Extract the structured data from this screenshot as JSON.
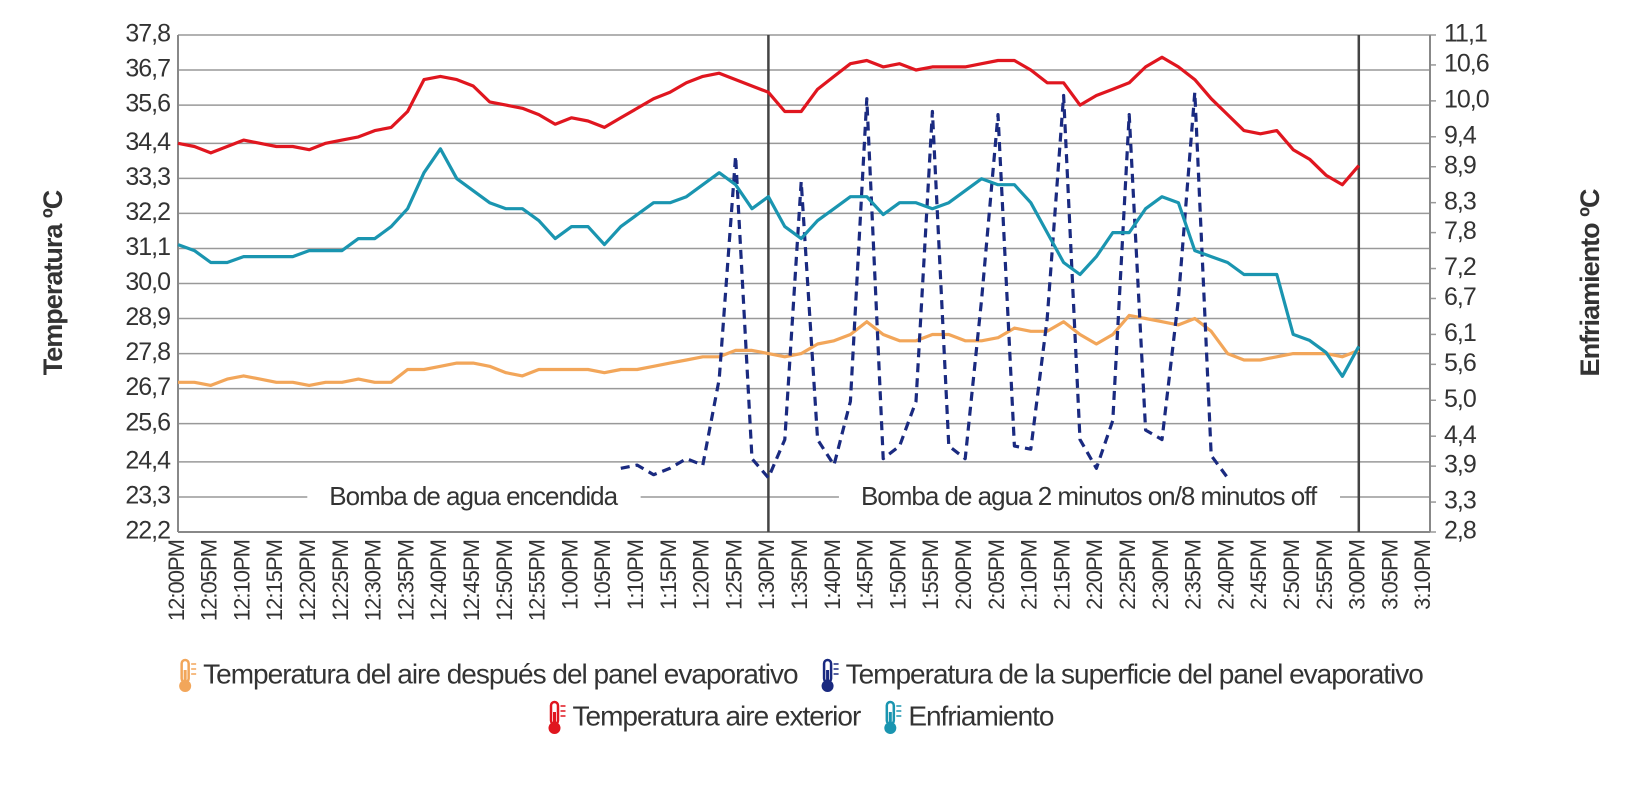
{
  "chart_data": {
    "type": "line",
    "y_label": "Temperatura ºC",
    "y2_label": "Enfriamiento ºC",
    "categories": [
      "12:00PM",
      null,
      "12:05PM",
      null,
      "12:10PM",
      null,
      "12:15PM",
      null,
      "12:20PM",
      null,
      "12:25PM",
      null,
      "12:30PM",
      null,
      "12:35PM",
      null,
      "12:40PM",
      null,
      "12:45PM",
      null,
      "12:50PM",
      null,
      "12:55PM",
      null,
      "1:00PM",
      null,
      "1:05PM",
      null,
      "1:10PM",
      null,
      "1:15PM",
      null,
      "1:20PM",
      null,
      "1:25PM",
      null,
      "1:30PM",
      null,
      "1:35PM",
      null,
      "1:40PM",
      null,
      "1:45PM",
      null,
      "1:50PM",
      null,
      "1:55PM",
      null,
      "2:00PM",
      null,
      "2:05PM",
      null,
      "2:10PM",
      null,
      "2:15PM",
      null,
      "2:20PM",
      null,
      "2:25PM",
      null,
      "2:30PM",
      null,
      "2:35PM",
      null,
      "2:40PM",
      null,
      "2:45PM",
      null,
      "2:50PM",
      null,
      "2:55PM",
      null,
      "3:00PM",
      null,
      "3:05PM",
      null,
      "3:10PM"
    ],
    "series": [
      {
        "name": "Temperatura del aire después del panel evaporativo",
        "color": "#f2a65a",
        "style": "solid",
        "values": [
          26.9,
          26.9,
          26.8,
          27.0,
          27.1,
          27.0,
          26.9,
          26.9,
          26.8,
          26.9,
          26.9,
          27.0,
          26.9,
          26.9,
          27.3,
          27.3,
          27.4,
          27.5,
          27.5,
          27.4,
          27.2,
          27.1,
          27.3,
          27.3,
          27.3,
          27.3,
          27.2,
          27.3,
          27.3,
          27.4,
          27.5,
          27.6,
          27.7,
          27.7,
          27.9,
          27.9,
          27.8,
          27.7,
          27.8,
          28.1,
          28.2,
          28.4,
          28.8,
          28.4,
          28.2,
          28.2,
          28.4,
          28.4,
          28.2,
          28.2,
          28.3,
          28.6,
          28.5,
          28.5,
          28.8,
          28.4,
          28.1,
          28.4,
          29.0,
          28.9,
          28.8,
          28.7,
          28.9,
          28.5,
          27.8,
          27.6,
          27.6,
          27.7,
          27.8,
          27.8,
          27.8,
          27.7,
          27.9,
          null,
          null,
          null,
          null
        ]
      },
      {
        "name": "Temperatura de la superficie del panel evaporativo",
        "color": "#1a2a80",
        "style": "dashed",
        "values": [
          null,
          null,
          null,
          null,
          null,
          null,
          null,
          null,
          null,
          null,
          null,
          null,
          null,
          null,
          null,
          null,
          null,
          null,
          null,
          null,
          null,
          null,
          null,
          null,
          null,
          null,
          null,
          24.2,
          24.3,
          24.0,
          24.2,
          24.5,
          24.3,
          27.0,
          34.0,
          24.5,
          23.9,
          25.1,
          33.2,
          25.1,
          24.3,
          26.3,
          35.8,
          24.5,
          24.9,
          26.3,
          35.4,
          24.9,
          24.5,
          29.5,
          35.3,
          24.9,
          24.8,
          28.9,
          35.9,
          25.1,
          24.2,
          25.7,
          35.3,
          25.4,
          25.1,
          29.5,
          36.0,
          24.6,
          23.9,
          null,
          null,
          null,
          null,
          null,
          null,
          null,
          null,
          null,
          null,
          null,
          null
        ]
      },
      {
        "name": "Temperatura aire exterior",
        "color": "#e0161f",
        "style": "solid",
        "values": [
          34.4,
          34.3,
          34.1,
          34.3,
          34.5,
          34.4,
          34.3,
          34.3,
          34.2,
          34.4,
          34.5,
          34.6,
          34.8,
          34.9,
          35.4,
          36.4,
          36.5,
          36.4,
          36.2,
          35.7,
          35.6,
          35.5,
          35.3,
          35.0,
          35.2,
          35.1,
          34.9,
          35.2,
          35.5,
          35.8,
          36.0,
          36.3,
          36.5,
          36.6,
          36.4,
          36.2,
          36.0,
          35.4,
          35.4,
          36.1,
          36.5,
          36.9,
          37.0,
          36.8,
          36.9,
          36.7,
          36.8,
          36.8,
          36.8,
          36.9,
          37.0,
          37.0,
          36.7,
          36.3,
          36.3,
          35.6,
          35.9,
          36.1,
          36.3,
          36.8,
          37.1,
          36.8,
          36.4,
          35.8,
          35.3,
          34.8,
          34.7,
          34.8,
          34.2,
          33.9,
          33.4,
          33.1,
          33.7,
          null,
          null,
          null,
          null
        ]
      },
      {
        "name": "Enfriamiento",
        "color": "#1a95b0",
        "style": "solid",
        "axis": "y2",
        "values": [
          7.6,
          7.5,
          7.3,
          7.3,
          7.4,
          7.4,
          7.4,
          7.4,
          7.5,
          7.5,
          7.5,
          7.7,
          7.7,
          7.9,
          8.2,
          8.8,
          9.2,
          8.7,
          8.5,
          8.3,
          8.2,
          8.2,
          8.0,
          7.7,
          7.9,
          7.9,
          7.6,
          7.9,
          8.1,
          8.3,
          8.3,
          8.4,
          8.6,
          8.8,
          8.6,
          8.2,
          8.4,
          7.9,
          7.7,
          8.0,
          8.2,
          8.4,
          8.4,
          8.1,
          8.3,
          8.3,
          8.2,
          8.3,
          8.5,
          8.7,
          8.6,
          8.6,
          8.3,
          7.8,
          7.3,
          7.1,
          7.4,
          7.8,
          7.8,
          8.2,
          8.4,
          8.3,
          7.5,
          7.4,
          7.3,
          7.1,
          7.1,
          7.1,
          6.1,
          6.0,
          5.8,
          5.4,
          5.9,
          null,
          null,
          null,
          null
        ]
      }
    ],
    "phases": [
      {
        "text": "Bomba de agua encendida",
        "from": "12:00PM",
        "to": "1:30PM"
      },
      {
        "text": "Bomba de agua 2 minutos on/8 minutos off",
        "from": "1:30PM",
        "to": "3:00PM"
      }
    ],
    "ylim": [
      22.2,
      37.8
    ],
    "yticks": [
      {
        "value": 22.2,
        "label": "22,2"
      },
      {
        "value": 23.3,
        "label": "23,3"
      },
      {
        "value": 24.4,
        "label": "24,4"
      },
      {
        "value": 25.6,
        "label": "25,6"
      },
      {
        "value": 26.7,
        "label": "26,7"
      },
      {
        "value": 27.8,
        "label": "27,8"
      },
      {
        "value": 28.9,
        "label": "28,9"
      },
      {
        "value": 30.0,
        "label": "30,0"
      },
      {
        "value": 31.1,
        "label": "31,1"
      },
      {
        "value": 32.2,
        "label": "32,2"
      },
      {
        "value": 33.3,
        "label": "33,3"
      },
      {
        "value": 34.4,
        "label": "34,4"
      },
      {
        "value": 35.6,
        "label": "35,6"
      },
      {
        "value": 36.7,
        "label": "36,7"
      },
      {
        "value": 37.8,
        "label": "37,8"
      }
    ],
    "y2lim": [
      2.8,
      11.1
    ],
    "y2ticks": [
      {
        "value": 2.8,
        "label": "2,8"
      },
      {
        "value": 3.3,
        "label": "3,3"
      },
      {
        "value": 3.9,
        "label": "3,9"
      },
      {
        "value": 4.4,
        "label": "4,4"
      },
      {
        "value": 5.0,
        "label": "5,0"
      },
      {
        "value": 5.6,
        "label": "5,6"
      },
      {
        "value": 6.1,
        "label": "6,1"
      },
      {
        "value": 6.7,
        "label": "6,7"
      },
      {
        "value": 7.2,
        "label": "7,2"
      },
      {
        "value": 7.8,
        "label": "7,8"
      },
      {
        "value": 8.3,
        "label": "8,3"
      },
      {
        "value": 8.9,
        "label": "8,9"
      },
      {
        "value": 9.4,
        "label": "9,4"
      },
      {
        "value": 10.0,
        "label": "10,0"
      },
      {
        "value": 10.6,
        "label": "10,6"
      },
      {
        "value": 11.1,
        "label": "11,1"
      }
    ],
    "grid": true,
    "legend": "bottom"
  }
}
